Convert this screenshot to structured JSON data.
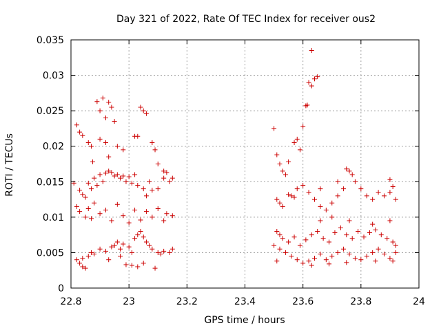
{
  "chart_data": {
    "type": "scatter",
    "title": "Day 321 of 2022, Rate Of TEC Index for receiver ous2",
    "xlabel": "GPS time / hours",
    "ylabel": "ROTI / TECUs",
    "xlim": [
      22.8,
      24
    ],
    "ylim": [
      0,
      0.035
    ],
    "x_ticks": [
      22.8,
      23,
      23.2,
      23.4,
      23.6,
      23.8,
      24
    ],
    "x_tick_labels": [
      "22.8",
      "23",
      "23.2",
      "23.4",
      "23.6",
      "23.8",
      "24"
    ],
    "y_ticks": [
      0,
      0.005,
      0.01,
      0.015,
      0.02,
      0.025,
      0.03,
      0.035
    ],
    "y_tick_labels": [
      "0",
      "0.005",
      "0.01",
      "0.015",
      "0.02",
      "0.025",
      "0.03",
      "0.035"
    ],
    "grid": true,
    "marker": "+",
    "color": "#cc0000",
    "series": [
      {
        "name": "ROTI",
        "points": [
          [
            22.82,
            0.023
          ],
          [
            22.83,
            0.022
          ],
          [
            22.84,
            0.0215
          ],
          [
            22.86,
            0.0205
          ],
          [
            22.87,
            0.02
          ],
          [
            22.875,
            0.0178
          ],
          [
            22.89,
            0.0263
          ],
          [
            22.9,
            0.025
          ],
          [
            22.91,
            0.0268
          ],
          [
            22.92,
            0.024
          ],
          [
            22.93,
            0.0262
          ],
          [
            22.94,
            0.0255
          ],
          [
            22.95,
            0.0235
          ],
          [
            22.9,
            0.021
          ],
          [
            22.92,
            0.0205
          ],
          [
            22.96,
            0.02
          ],
          [
            22.98,
            0.0195
          ],
          [
            22.93,
            0.0185
          ],
          [
            23.02,
            0.0214
          ],
          [
            23.03,
            0.0214
          ],
          [
            23.04,
            0.0255
          ],
          [
            23.05,
            0.025
          ],
          [
            23.06,
            0.0246
          ],
          [
            23.08,
            0.0205
          ],
          [
            23.09,
            0.0195
          ],
          [
            23.1,
            0.0175
          ],
          [
            23.12,
            0.0165
          ],
          [
            23.13,
            0.0163
          ],
          [
            22.81,
            0.0148
          ],
          [
            22.83,
            0.0138
          ],
          [
            22.84,
            0.0132
          ],
          [
            22.85,
            0.0128
          ],
          [
            22.86,
            0.0148
          ],
          [
            22.87,
            0.014
          ],
          [
            22.88,
            0.0155
          ],
          [
            22.89,
            0.0145
          ],
          [
            22.9,
            0.016
          ],
          [
            22.91,
            0.015
          ],
          [
            22.92,
            0.0162
          ],
          [
            22.93,
            0.0165
          ],
          [
            22.94,
            0.0163
          ],
          [
            22.95,
            0.0158
          ],
          [
            22.96,
            0.016
          ],
          [
            22.97,
            0.0155
          ],
          [
            22.98,
            0.0158
          ],
          [
            22.99,
            0.015
          ],
          [
            23.0,
            0.0157
          ],
          [
            23.01,
            0.0148
          ],
          [
            23.02,
            0.016
          ],
          [
            23.03,
            0.0145
          ],
          [
            23.05,
            0.014
          ],
          [
            23.06,
            0.013
          ],
          [
            23.07,
            0.015
          ],
          [
            23.08,
            0.0138
          ],
          [
            23.1,
            0.014
          ],
          [
            23.12,
            0.0155
          ],
          [
            23.14,
            0.015
          ],
          [
            23.15,
            0.0155
          ],
          [
            22.82,
            0.0115
          ],
          [
            22.83,
            0.0108
          ],
          [
            22.85,
            0.01
          ],
          [
            22.86,
            0.0112
          ],
          [
            22.87,
            0.0098
          ],
          [
            22.88,
            0.012
          ],
          [
            22.9,
            0.0105
          ],
          [
            22.92,
            0.011
          ],
          [
            22.94,
            0.0095
          ],
          [
            22.96,
            0.0118
          ],
          [
            22.98,
            0.0102
          ],
          [
            23.0,
            0.0092
          ],
          [
            23.02,
            0.011
          ],
          [
            23.04,
            0.0096
          ],
          [
            23.06,
            0.0108
          ],
          [
            23.08,
            0.01
          ],
          [
            23.1,
            0.0112
          ],
          [
            23.12,
            0.0095
          ],
          [
            23.13,
            0.0105
          ],
          [
            23.15,
            0.0102
          ],
          [
            22.82,
            0.004
          ],
          [
            22.83,
            0.0035
          ],
          [
            22.84,
            0.003
          ],
          [
            22.85,
            0.0028
          ],
          [
            22.86,
            0.0045
          ],
          [
            22.87,
            0.005
          ],
          [
            22.88,
            0.0048
          ],
          [
            22.9,
            0.0055
          ],
          [
            22.92,
            0.0052
          ],
          [
            22.94,
            0.0058
          ],
          [
            22.95,
            0.006
          ],
          [
            22.96,
            0.0065
          ],
          [
            22.97,
            0.0055
          ],
          [
            22.98,
            0.0062
          ],
          [
            23.0,
            0.0058
          ],
          [
            23.01,
            0.005
          ],
          [
            23.02,
            0.007
          ],
          [
            23.03,
            0.0075
          ],
          [
            23.04,
            0.008
          ],
          [
            23.05,
            0.0072
          ],
          [
            23.06,
            0.0065
          ],
          [
            23.07,
            0.006
          ],
          [
            23.08,
            0.0055
          ],
          [
            23.1,
            0.005
          ],
          [
            23.11,
            0.0048
          ],
          [
            23.12,
            0.0052
          ],
          [
            23.14,
            0.005
          ],
          [
            23.15,
            0.0055
          ],
          [
            22.93,
            0.004
          ],
          [
            22.97,
            0.0045
          ],
          [
            22.99,
            0.0033
          ],
          [
            23.01,
            0.0032
          ],
          [
            23.03,
            0.003
          ],
          [
            23.05,
            0.0035
          ],
          [
            23.09,
            0.0028
          ],
          [
            22.84,
            0.0042
          ],
          [
            23.5,
            0.0225
          ],
          [
            23.51,
            0.0188
          ],
          [
            23.52,
            0.0175
          ],
          [
            23.53,
            0.0165
          ],
          [
            23.55,
            0.0178
          ],
          [
            23.57,
            0.0205
          ],
          [
            23.58,
            0.021
          ],
          [
            23.59,
            0.0195
          ],
          [
            23.6,
            0.0228
          ],
          [
            23.61,
            0.0257
          ],
          [
            23.615,
            0.0258
          ],
          [
            23.62,
            0.029
          ],
          [
            23.63,
            0.0285
          ],
          [
            23.64,
            0.0295
          ],
          [
            23.65,
            0.0298
          ],
          [
            23.63,
            0.0335
          ],
          [
            23.56,
            0.013
          ],
          [
            23.54,
            0.016
          ],
          [
            23.51,
            0.0125
          ],
          [
            23.52,
            0.012
          ],
          [
            23.53,
            0.0115
          ],
          [
            23.55,
            0.0132
          ],
          [
            23.57,
            0.0128
          ],
          [
            23.58,
            0.014
          ],
          [
            23.6,
            0.0145
          ],
          [
            23.62,
            0.0135
          ],
          [
            23.64,
            0.0125
          ],
          [
            23.66,
            0.0115
          ],
          [
            23.68,
            0.011
          ],
          [
            23.7,
            0.012
          ],
          [
            23.72,
            0.013
          ],
          [
            23.74,
            0.014
          ],
          [
            23.75,
            0.0168
          ],
          [
            23.76,
            0.0165
          ],
          [
            23.77,
            0.016
          ],
          [
            23.78,
            0.015
          ],
          [
            23.8,
            0.014
          ],
          [
            23.82,
            0.013
          ],
          [
            23.84,
            0.0125
          ],
          [
            23.86,
            0.0135
          ],
          [
            23.88,
            0.013
          ],
          [
            23.9,
            0.0135
          ],
          [
            23.91,
            0.0143
          ],
          [
            23.92,
            0.0125
          ],
          [
            23.9,
            0.0153
          ],
          [
            23.72,
            0.015
          ],
          [
            23.66,
            0.014
          ],
          [
            23.51,
            0.008
          ],
          [
            23.52,
            0.0075
          ],
          [
            23.53,
            0.007
          ],
          [
            23.55,
            0.0065
          ],
          [
            23.57,
            0.0072
          ],
          [
            23.59,
            0.006
          ],
          [
            23.61,
            0.0068
          ],
          [
            23.63,
            0.0075
          ],
          [
            23.65,
            0.008
          ],
          [
            23.67,
            0.007
          ],
          [
            23.69,
            0.0065
          ],
          [
            23.71,
            0.0078
          ],
          [
            23.73,
            0.0085
          ],
          [
            23.75,
            0.0075
          ],
          [
            23.77,
            0.007
          ],
          [
            23.79,
            0.008
          ],
          [
            23.81,
            0.0072
          ],
          [
            23.83,
            0.0078
          ],
          [
            23.85,
            0.0082
          ],
          [
            23.87,
            0.0075
          ],
          [
            23.89,
            0.007
          ],
          [
            23.91,
            0.0065
          ],
          [
            23.92,
            0.006
          ],
          [
            23.66,
            0.0095
          ],
          [
            23.7,
            0.01
          ],
          [
            23.76,
            0.0095
          ],
          [
            23.84,
            0.009
          ],
          [
            23.9,
            0.0095
          ],
          [
            23.5,
            0.006
          ],
          [
            23.52,
            0.0055
          ],
          [
            23.54,
            0.005
          ],
          [
            23.56,
            0.0045
          ],
          [
            23.58,
            0.004
          ],
          [
            23.6,
            0.0035
          ],
          [
            23.62,
            0.0038
          ],
          [
            23.64,
            0.0042
          ],
          [
            23.66,
            0.0048
          ],
          [
            23.68,
            0.004
          ],
          [
            23.7,
            0.0045
          ],
          [
            23.72,
            0.005
          ],
          [
            23.74,
            0.0055
          ],
          [
            23.76,
            0.0048
          ],
          [
            23.78,
            0.0042
          ],
          [
            23.8,
            0.004
          ],
          [
            23.82,
            0.0045
          ],
          [
            23.84,
            0.005
          ],
          [
            23.86,
            0.0055
          ],
          [
            23.88,
            0.0048
          ],
          [
            23.9,
            0.0042
          ],
          [
            23.91,
            0.0038
          ],
          [
            23.92,
            0.005
          ],
          [
            23.51,
            0.0038
          ],
          [
            23.63,
            0.0032
          ],
          [
            23.69,
            0.0034
          ],
          [
            23.75,
            0.0036
          ],
          [
            23.85,
            0.0038
          ]
        ]
      }
    ]
  }
}
